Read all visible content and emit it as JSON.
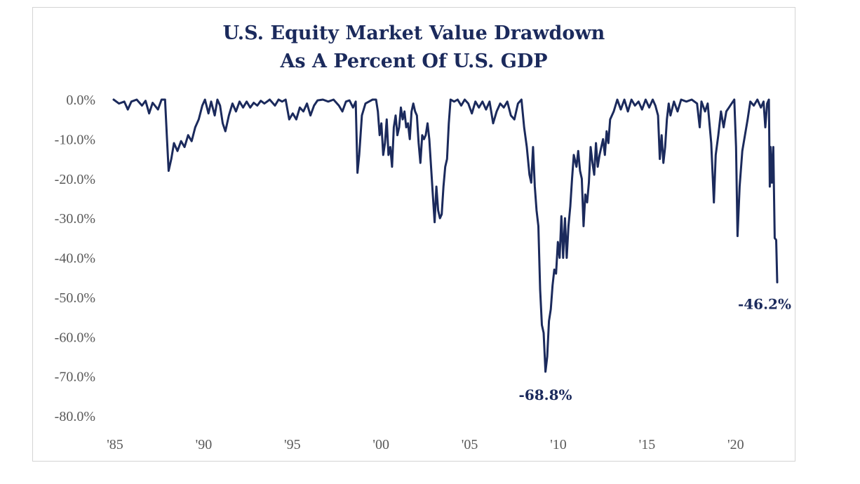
{
  "chart_data": {
    "type": "line",
    "title_lines": [
      "U.S. Equity Market Value Drawdown",
      "As A Percent Of U.S. GDP"
    ],
    "xlabel": "",
    "ylabel": "",
    "x_tick_labels": [
      "'85",
      "'90",
      "'95",
      "'00",
      "'05",
      "'10",
      "'15",
      "'20"
    ],
    "x_tick_years": [
      1985,
      1990,
      1995,
      2000,
      2005,
      2010,
      2015,
      2020
    ],
    "y_tick_labels": [
      "0.0%",
      "-10.0%",
      "-20.0%",
      "-30.0%",
      "-40.0%",
      "-50.0%",
      "-60.0%",
      "-70.0%",
      "-80.0%"
    ],
    "y_tick_values": [
      0,
      -10,
      -20,
      -30,
      -40,
      -50,
      -60,
      -70,
      -80
    ],
    "xlim": [
      1985,
      2022.5
    ],
    "ylim": [
      -80,
      0
    ],
    "grid": false,
    "line_color": "#1b2a5c",
    "series": [
      {
        "points": [
          [
            1985.0,
            0
          ],
          [
            1985.3,
            -1
          ],
          [
            1985.6,
            -0.5
          ],
          [
            1985.8,
            -2.5
          ],
          [
            1986.0,
            -0.5
          ],
          [
            1986.3,
            0
          ],
          [
            1986.6,
            -1.5
          ],
          [
            1986.8,
            -0.3
          ],
          [
            1987.0,
            -3.5
          ],
          [
            1987.2,
            -0.8
          ],
          [
            1987.5,
            -2.5
          ],
          [
            1987.7,
            0
          ],
          [
            1987.9,
            0
          ],
          [
            1988.0,
            -9
          ],
          [
            1988.1,
            -18
          ],
          [
            1988.25,
            -15
          ],
          [
            1988.4,
            -11
          ],
          [
            1988.6,
            -13
          ],
          [
            1988.8,
            -10.5
          ],
          [
            1989.0,
            -12
          ],
          [
            1989.2,
            -9
          ],
          [
            1989.4,
            -10.5
          ],
          [
            1989.6,
            -7
          ],
          [
            1989.8,
            -5
          ],
          [
            1990.0,
            -1.5
          ],
          [
            1990.15,
            0
          ],
          [
            1990.35,
            -3.5
          ],
          [
            1990.5,
            -0.5
          ],
          [
            1990.7,
            -4
          ],
          [
            1990.85,
            0
          ],
          [
            1991.0,
            -1.5
          ],
          [
            1991.15,
            -6
          ],
          [
            1991.3,
            -8
          ],
          [
            1991.5,
            -4
          ],
          [
            1991.7,
            -1
          ],
          [
            1991.9,
            -3
          ],
          [
            1992.1,
            -0.5
          ],
          [
            1992.3,
            -2
          ],
          [
            1992.5,
            -0.5
          ],
          [
            1992.7,
            -2
          ],
          [
            1992.9,
            -0.8
          ],
          [
            1993.1,
            -1.5
          ],
          [
            1993.3,
            -0.3
          ],
          [
            1993.5,
            -1
          ],
          [
            1993.8,
            0
          ],
          [
            1994.1,
            -1.5
          ],
          [
            1994.3,
            0
          ],
          [
            1994.5,
            -0.5
          ],
          [
            1994.7,
            0
          ],
          [
            1994.9,
            -5
          ],
          [
            1995.1,
            -3.5
          ],
          [
            1995.3,
            -5
          ],
          [
            1995.5,
            -2
          ],
          [
            1995.7,
            -3
          ],
          [
            1995.9,
            -1
          ],
          [
            1996.1,
            -4
          ],
          [
            1996.3,
            -1.5
          ],
          [
            1996.5,
            -0.2
          ],
          [
            1996.8,
            0
          ],
          [
            1997.1,
            -0.5
          ],
          [
            1997.4,
            0
          ],
          [
            1997.7,
            -1.5
          ],
          [
            1997.9,
            -3
          ],
          [
            1998.1,
            -0.5
          ],
          [
            1998.3,
            -0.2
          ],
          [
            1998.5,
            -2
          ],
          [
            1998.65,
            -0.5
          ],
          [
            1998.75,
            -18.5
          ],
          [
            1998.85,
            -14
          ],
          [
            1999.0,
            -4
          ],
          [
            1999.2,
            -1
          ],
          [
            1999.4,
            -0.5
          ],
          [
            1999.6,
            0
          ],
          [
            1999.8,
            0
          ],
          [
            1999.9,
            -3
          ],
          [
            2000.0,
            -9
          ],
          [
            2000.1,
            -6
          ],
          [
            2000.2,
            -14
          ],
          [
            2000.3,
            -11
          ],
          [
            2000.4,
            -5
          ],
          [
            2000.5,
            -14
          ],
          [
            2000.6,
            -12
          ],
          [
            2000.7,
            -17
          ],
          [
            2000.8,
            -7
          ],
          [
            2000.9,
            -4
          ],
          [
            2001.0,
            -9
          ],
          [
            2001.1,
            -7
          ],
          [
            2001.2,
            -2
          ],
          [
            2001.3,
            -5
          ],
          [
            2001.4,
            -3
          ],
          [
            2001.5,
            -7
          ],
          [
            2001.6,
            -6
          ],
          [
            2001.7,
            -10
          ],
          [
            2001.8,
            -3
          ],
          [
            2001.9,
            -1
          ],
          [
            2002.0,
            -3
          ],
          [
            2002.1,
            -4
          ],
          [
            2002.2,
            -11
          ],
          [
            2002.3,
            -16
          ],
          [
            2002.4,
            -9
          ],
          [
            2002.5,
            -10
          ],
          [
            2002.6,
            -9
          ],
          [
            2002.7,
            -6
          ],
          [
            2002.8,
            -10
          ],
          [
            2002.9,
            -17
          ],
          [
            2003.0,
            -24
          ],
          [
            2003.1,
            -31
          ],
          [
            2003.2,
            -22
          ],
          [
            2003.3,
            -28
          ],
          [
            2003.4,
            -30
          ],
          [
            2003.5,
            -29
          ],
          [
            2003.6,
            -22
          ],
          [
            2003.7,
            -17
          ],
          [
            2003.8,
            -15
          ],
          [
            2003.9,
            -6
          ],
          [
            2004.0,
            0
          ],
          [
            2004.2,
            -0.5
          ],
          [
            2004.4,
            0
          ],
          [
            2004.6,
            -1.5
          ],
          [
            2004.8,
            0
          ],
          [
            2005.0,
            -1
          ],
          [
            2005.2,
            -3.5
          ],
          [
            2005.4,
            -0.5
          ],
          [
            2005.6,
            -2
          ],
          [
            2005.8,
            -0.5
          ],
          [
            2006.0,
            -2.5
          ],
          [
            2006.2,
            -0.5
          ],
          [
            2006.4,
            -6
          ],
          [
            2006.6,
            -3
          ],
          [
            2006.8,
            -1
          ],
          [
            2007.0,
            -2
          ],
          [
            2007.2,
            -0.5
          ],
          [
            2007.4,
            -4
          ],
          [
            2007.6,
            -5
          ],
          [
            2007.8,
            -1
          ],
          [
            2008.0,
            0
          ],
          [
            2008.15,
            -7
          ],
          [
            2008.3,
            -12
          ],
          [
            2008.45,
            -19
          ],
          [
            2008.55,
            -21
          ],
          [
            2008.65,
            -12
          ],
          [
            2008.75,
            -22
          ],
          [
            2008.85,
            -28
          ],
          [
            2008.95,
            -32
          ],
          [
            2009.05,
            -48
          ],
          [
            2009.15,
            -57
          ],
          [
            2009.25,
            -59
          ],
          [
            2009.35,
            -68.8
          ],
          [
            2009.45,
            -65
          ],
          [
            2009.55,
            -56
          ],
          [
            2009.65,
            -53
          ],
          [
            2009.75,
            -47
          ],
          [
            2009.85,
            -43
          ],
          [
            2009.95,
            -44
          ],
          [
            2010.05,
            -36
          ],
          [
            2010.15,
            -40
          ],
          [
            2010.25,
            -29.5
          ],
          [
            2010.35,
            -40
          ],
          [
            2010.45,
            -30
          ],
          [
            2010.55,
            -40
          ],
          [
            2010.65,
            -32
          ],
          [
            2010.75,
            -27
          ],
          [
            2010.85,
            -20
          ],
          [
            2010.95,
            -14
          ],
          [
            2011.1,
            -17
          ],
          [
            2011.2,
            -13
          ],
          [
            2011.3,
            -18
          ],
          [
            2011.4,
            -20
          ],
          [
            2011.5,
            -32
          ],
          [
            2011.6,
            -24
          ],
          [
            2011.7,
            -26
          ],
          [
            2011.8,
            -21
          ],
          [
            2011.9,
            -12
          ],
          [
            2012.0,
            -16
          ],
          [
            2012.1,
            -19
          ],
          [
            2012.2,
            -11
          ],
          [
            2012.3,
            -17
          ],
          [
            2012.4,
            -14
          ],
          [
            2012.5,
            -12
          ],
          [
            2012.6,
            -10
          ],
          [
            2012.7,
            -14
          ],
          [
            2012.8,
            -8
          ],
          [
            2012.9,
            -11
          ],
          [
            2013.0,
            -5
          ],
          [
            2013.2,
            -3
          ],
          [
            2013.4,
            0
          ],
          [
            2013.6,
            -2.5
          ],
          [
            2013.8,
            0
          ],
          [
            2014.0,
            -3
          ],
          [
            2014.2,
            0
          ],
          [
            2014.4,
            -1.5
          ],
          [
            2014.6,
            -0.5
          ],
          [
            2014.8,
            -2.5
          ],
          [
            2015.0,
            0
          ],
          [
            2015.2,
            -2
          ],
          [
            2015.4,
            0
          ],
          [
            2015.55,
            -1.5
          ],
          [
            2015.7,
            -4
          ],
          [
            2015.8,
            -15
          ],
          [
            2015.9,
            -9
          ],
          [
            2016.0,
            -16
          ],
          [
            2016.1,
            -12
          ],
          [
            2016.2,
            -5
          ],
          [
            2016.3,
            -1
          ],
          [
            2016.4,
            -4
          ],
          [
            2016.6,
            -0.5
          ],
          [
            2016.8,
            -3
          ],
          [
            2017.0,
            0
          ],
          [
            2017.3,
            -0.5
          ],
          [
            2017.6,
            0
          ],
          [
            2017.9,
            -1
          ],
          [
            2018.05,
            -7
          ],
          [
            2018.15,
            -0.5
          ],
          [
            2018.35,
            -3
          ],
          [
            2018.5,
            -1
          ],
          [
            2018.7,
            -11
          ],
          [
            2018.85,
            -26
          ],
          [
            2018.95,
            -14
          ],
          [
            2019.1,
            -9
          ],
          [
            2019.25,
            -3
          ],
          [
            2019.4,
            -7
          ],
          [
            2019.55,
            -3
          ],
          [
            2019.7,
            -2
          ],
          [
            2019.85,
            -1
          ],
          [
            2020.0,
            0
          ],
          [
            2020.1,
            -12
          ],
          [
            2020.18,
            -34.5
          ],
          [
            2020.3,
            -22
          ],
          [
            2020.45,
            -13
          ],
          [
            2020.6,
            -9
          ],
          [
            2020.75,
            -5
          ],
          [
            2020.9,
            -0.5
          ],
          [
            2021.1,
            -1.5
          ],
          [
            2021.3,
            0
          ],
          [
            2021.5,
            -2
          ],
          [
            2021.65,
            -0.5
          ],
          [
            2021.75,
            -7
          ],
          [
            2021.85,
            -1
          ],
          [
            2021.95,
            0
          ],
          [
            2022.0,
            -22
          ],
          [
            2022.05,
            -12
          ],
          [
            2022.12,
            -21
          ],
          [
            2022.2,
            -12
          ],
          [
            2022.28,
            -35
          ],
          [
            2022.36,
            -35.5
          ],
          [
            2022.42,
            -46.2
          ]
        ]
      }
    ],
    "annotations": [
      {
        "text": "-68.8%",
        "x": 2009.35,
        "y": -68.8
      },
      {
        "text": "-46.2%",
        "x": 2022.42,
        "y": -46.2
      }
    ]
  }
}
